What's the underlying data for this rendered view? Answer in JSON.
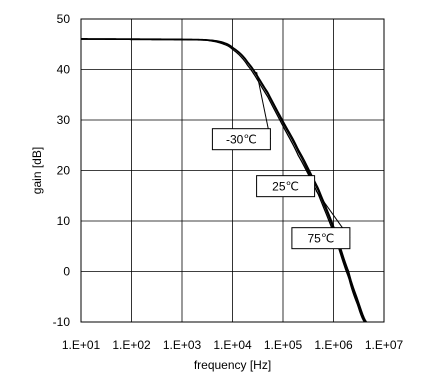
{
  "chart_data": {
    "type": "line",
    "xlabel": "frequency [Hz]",
    "ylabel": "gain [dB]",
    "x_scale": "log",
    "xlim": [
      10,
      10000000
    ],
    "ylim": [
      -10,
      50
    ],
    "grid": true,
    "x_ticks": [
      {
        "value": 10,
        "label": "1.E+01"
      },
      {
        "value": 100,
        "label": "1.E+02"
      },
      {
        "value": 1000,
        "label": "1.E+03"
      },
      {
        "value": 10000,
        "label": "1.E+04"
      },
      {
        "value": 100000,
        "label": "1.E+05"
      },
      {
        "value": 1000000,
        "label": "1.E+06"
      },
      {
        "value": 10000000,
        "label": "1.E+07"
      }
    ],
    "y_ticks": [
      {
        "value": 50,
        "label": "50"
      },
      {
        "value": 40,
        "label": "40"
      },
      {
        "value": 30,
        "label": "30"
      },
      {
        "value": 20,
        "label": "20"
      },
      {
        "value": 10,
        "label": "10"
      },
      {
        "value": 0,
        "label": "0"
      },
      {
        "value": -10,
        "label": "-10"
      }
    ],
    "series": [
      {
        "name": "-30℃",
        "points": [
          [
            10,
            46.1
          ],
          [
            1000,
            46.0
          ],
          [
            3000,
            45.9
          ],
          [
            6000,
            45.5
          ],
          [
            10000,
            44.4
          ],
          [
            20000,
            41.5
          ],
          [
            50000,
            35.5
          ],
          [
            100000,
            29.8
          ],
          [
            200000,
            24.2
          ],
          [
            500000,
            16.5
          ],
          [
            1000000,
            9.0
          ],
          [
            2000000,
            0.0
          ],
          [
            3000000,
            -5.5
          ],
          [
            4500000,
            -10.0
          ]
        ]
      },
      {
        "name": "25℃",
        "points": [
          [
            10,
            46.0
          ],
          [
            1000,
            45.9
          ],
          [
            3000,
            45.8
          ],
          [
            6000,
            45.4
          ],
          [
            10000,
            44.3
          ],
          [
            20000,
            41.3
          ],
          [
            50000,
            35.2
          ],
          [
            100000,
            29.4
          ],
          [
            200000,
            23.7
          ],
          [
            500000,
            16.0
          ],
          [
            1000000,
            8.4
          ],
          [
            2000000,
            -0.6
          ],
          [
            3000000,
            -6.0
          ],
          [
            4300000,
            -10.0
          ]
        ]
      },
      {
        "name": "75℃",
        "points": [
          [
            10,
            46.0
          ],
          [
            1000,
            45.9
          ],
          [
            3000,
            45.8
          ],
          [
            6000,
            45.2
          ],
          [
            10000,
            44.0
          ],
          [
            20000,
            40.8
          ],
          [
            50000,
            34.6
          ],
          [
            100000,
            28.8
          ],
          [
            200000,
            23.0
          ],
          [
            500000,
            15.3
          ],
          [
            1000000,
            7.7
          ],
          [
            2000000,
            -1.2
          ],
          [
            3000000,
            -6.6
          ],
          [
            4100000,
            -10.0
          ]
        ]
      }
    ],
    "annotations": [
      {
        "label": "-30℃",
        "series": 0,
        "x": 4000,
        "y": 26.2,
        "target_x": 30000,
        "target_y": 39.5
      },
      {
        "label": "25℃",
        "series": 1,
        "x": 30000,
        "y": 16.9,
        "target_x": 200000,
        "target_y": 24.0
      },
      {
        "label": "75℃",
        "series": 2,
        "x": 150000,
        "y": 6.6,
        "target_x": 450000,
        "target_y": 16.0
      }
    ]
  }
}
